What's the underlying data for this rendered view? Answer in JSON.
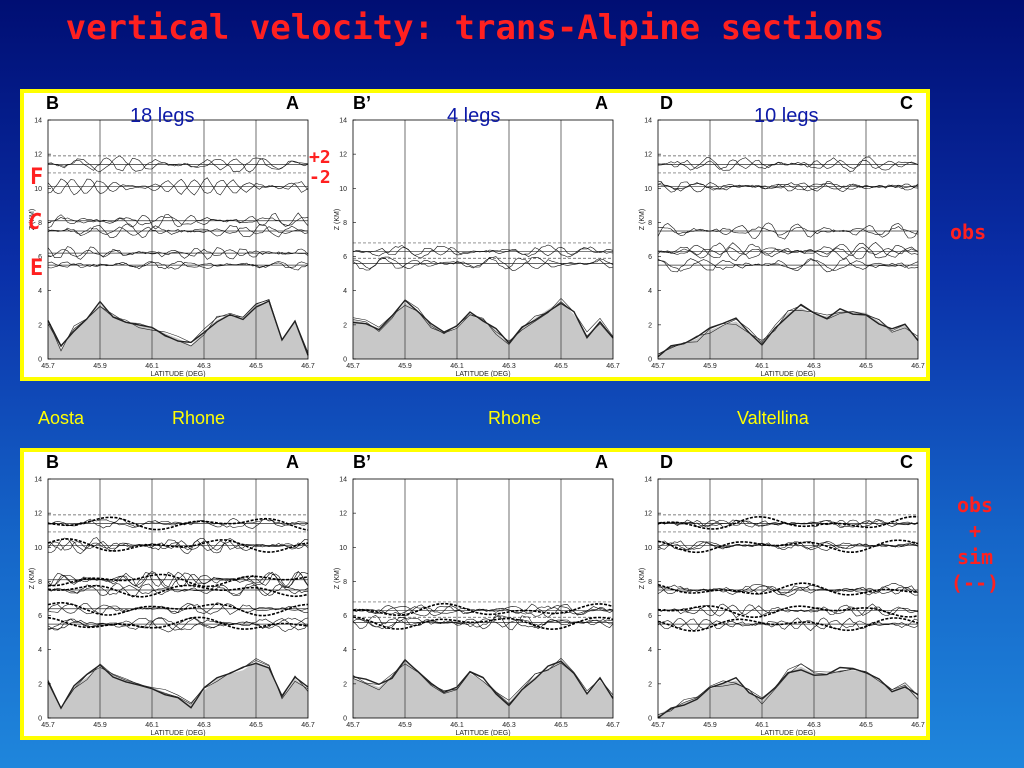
{
  "title": "vertical velocity: trans-Alpine sections",
  "markers": {
    "plus2": "+2",
    "minus2": "-2",
    "F": "F",
    "C": "C",
    "E": "E"
  },
  "right_labels": {
    "top": "obs",
    "bottom_lines": [
      "obs",
      "+",
      "sim",
      "(--)"
    ]
  },
  "regions": [
    "Aosta",
    "Rhone",
    "Rhone",
    "Valtellina"
  ],
  "sections": [
    {
      "left": "B",
      "right": "A",
      "legs": "18 legs"
    },
    {
      "left": "B’",
      "right": "A",
      "legs": "4 legs"
    },
    {
      "left": "D",
      "right": "C",
      "legs": "10 legs"
    }
  ],
  "axes": {
    "xlabel": "LATITUDE (DEG)",
    "ylabel": "Z (KM)",
    "xticks": [
      "45.7",
      "45.9",
      "46.1",
      "46.3",
      "46.5",
      "46.7"
    ],
    "yticks": [
      "0",
      "2",
      "4",
      "6",
      "8",
      "10",
      "12",
      "14"
    ]
  },
  "colors": {
    "panel_border": "#ffff00",
    "title": "#ff2020",
    "legs_text": "#0d1aa8",
    "region_text": "#ffff00",
    "terrain": "#c8c8c8"
  },
  "chart_data": [
    {
      "type": "line",
      "row": "obs",
      "section": "B-A",
      "xlim": [
        45.7,
        46.7
      ],
      "ylim": [
        0,
        14
      ],
      "flight_levels_km": [
        11.4,
        10.1,
        8.1,
        7.5,
        6.2,
        5.5
      ],
      "terrain": {
        "x": [
          45.7,
          45.75,
          45.8,
          45.85,
          45.9,
          45.95,
          46.0,
          46.05,
          46.1,
          46.15,
          46.2,
          46.25,
          46.3,
          46.35,
          46.4,
          46.45,
          46.5,
          46.55,
          46.6,
          46.65,
          46.7
        ],
        "y": [
          2.1,
          0.6,
          1.8,
          2.4,
          3.2,
          2.6,
          2.2,
          2.0,
          1.8,
          1.5,
          1.2,
          0.8,
          1.6,
          2.3,
          2.6,
          2.4,
          3.2,
          3.3,
          1.2,
          2.3,
          0.4
        ]
      }
    },
    {
      "type": "line",
      "row": "obs",
      "section": "B'-A",
      "xlim": [
        45.7,
        46.7
      ],
      "ylim": [
        0,
        14
      ],
      "flight_levels_km": [
        6.3,
        5.6
      ],
      "terrain": {
        "x": [
          45.7,
          45.75,
          45.8,
          45.85,
          45.9,
          45.95,
          46.0,
          46.05,
          46.1,
          46.15,
          46.2,
          46.25,
          46.3,
          46.35,
          46.4,
          46.45,
          46.5,
          46.55,
          46.6,
          46.65,
          46.7
        ],
        "y": [
          2.3,
          2.1,
          1.8,
          2.5,
          3.3,
          2.8,
          2.0,
          1.6,
          1.8,
          2.6,
          2.2,
          1.6,
          0.9,
          1.8,
          2.4,
          2.9,
          3.4,
          2.6,
          1.4,
          2.2,
          1.2
        ]
      }
    },
    {
      "type": "line",
      "row": "obs",
      "section": "D-C",
      "xlim": [
        45.7,
        46.7
      ],
      "ylim": [
        0,
        14
      ],
      "flight_levels_km": [
        11.4,
        10.1,
        7.5,
        6.3,
        5.5
      ],
      "terrain": {
        "x": [
          45.7,
          45.75,
          45.8,
          45.85,
          45.9,
          45.95,
          46.0,
          46.05,
          46.1,
          46.15,
          46.2,
          46.25,
          46.3,
          46.35,
          46.4,
          46.45,
          46.5,
          46.55,
          46.6,
          46.65,
          46.7
        ],
        "y": [
          0.2,
          0.6,
          0.9,
          1.2,
          1.7,
          2.0,
          2.2,
          1.6,
          1.0,
          1.8,
          2.7,
          3.0,
          2.6,
          2.5,
          2.8,
          2.8,
          2.7,
          2.2,
          1.6,
          2.0,
          1.2
        ]
      }
    },
    {
      "type": "line",
      "row": "obs+sim",
      "section": "B-A",
      "xlim": [
        45.7,
        46.7
      ],
      "ylim": [
        0,
        14
      ],
      "flight_levels_km": [
        11.4,
        10.1,
        8.1,
        7.5,
        6.4,
        5.5
      ],
      "terrain": {
        "x": [
          45.7,
          45.75,
          45.8,
          45.85,
          45.9,
          45.95,
          46.0,
          46.05,
          46.1,
          46.15,
          46.2,
          46.25,
          46.3,
          46.35,
          46.4,
          46.45,
          46.5,
          46.55,
          46.6,
          46.65,
          46.7
        ],
        "y": [
          2.1,
          0.6,
          1.8,
          2.4,
          3.0,
          2.6,
          2.2,
          2.0,
          1.8,
          1.5,
          1.2,
          0.8,
          1.6,
          2.3,
          2.6,
          2.8,
          3.3,
          3.0,
          1.2,
          2.3,
          1.7
        ]
      }
    },
    {
      "type": "line",
      "row": "obs+sim",
      "section": "B'-A",
      "xlim": [
        45.7,
        46.7
      ],
      "ylim": [
        0,
        14
      ],
      "flight_levels_km": [
        6.3,
        5.6
      ],
      "terrain": {
        "x": [
          45.7,
          45.75,
          45.8,
          45.85,
          45.9,
          45.95,
          46.0,
          46.05,
          46.1,
          46.15,
          46.2,
          46.25,
          46.3,
          46.35,
          46.4,
          46.45,
          46.5,
          46.55,
          46.6,
          46.65,
          46.7
        ],
        "y": [
          2.3,
          2.1,
          1.8,
          2.5,
          3.3,
          2.8,
          2.0,
          1.6,
          1.8,
          2.6,
          2.2,
          1.6,
          0.9,
          1.8,
          2.4,
          2.9,
          3.4,
          2.6,
          1.4,
          2.2,
          1.2
        ]
      }
    },
    {
      "type": "line",
      "row": "obs+sim",
      "section": "D-C",
      "xlim": [
        45.7,
        46.7
      ],
      "ylim": [
        0,
        14
      ],
      "flight_levels_km": [
        11.4,
        10.1,
        7.5,
        6.3,
        5.5
      ],
      "terrain": {
        "x": [
          45.7,
          45.75,
          45.8,
          45.85,
          45.9,
          45.95,
          46.0,
          46.05,
          46.1,
          46.15,
          46.2,
          46.25,
          46.3,
          46.35,
          46.4,
          46.45,
          46.5,
          46.55,
          46.6,
          46.65,
          46.7
        ],
        "y": [
          0.2,
          0.6,
          0.9,
          1.2,
          1.7,
          2.0,
          2.2,
          1.6,
          1.0,
          1.8,
          2.7,
          3.0,
          2.6,
          2.5,
          2.8,
          2.8,
          2.7,
          2.2,
          1.6,
          2.0,
          1.2
        ]
      }
    }
  ]
}
